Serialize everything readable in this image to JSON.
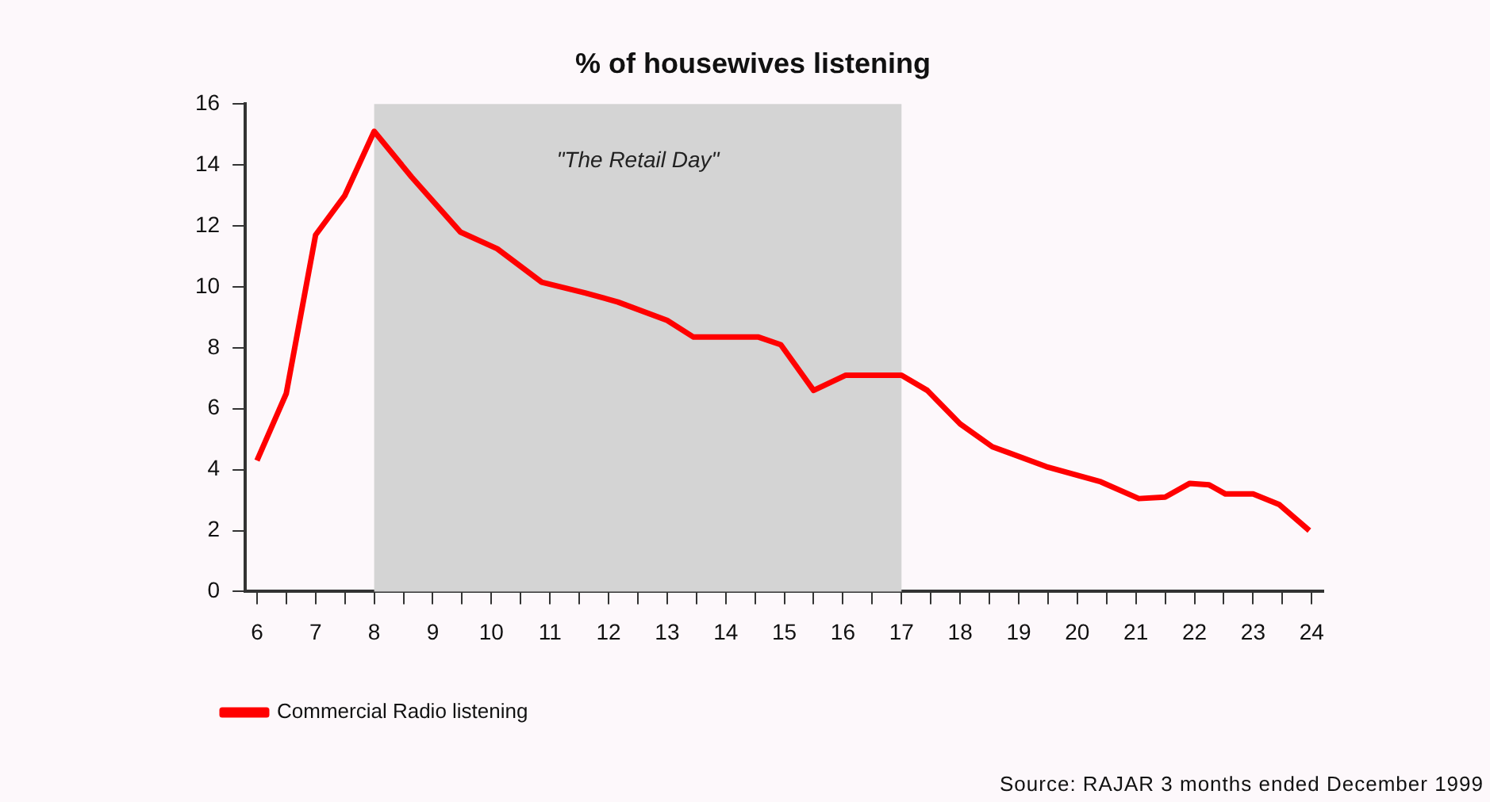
{
  "chart_data": {
    "type": "line",
    "title": "% of housewives listening",
    "series": [
      {
        "name": "Commercial Radio listening",
        "color": "#ff0000",
        "x": [
          6,
          6.5,
          7,
          7.5,
          8,
          8.64,
          9.47,
          10.1,
          10.86,
          11.6,
          12.16,
          13,
          13.45,
          14.56,
          14.94,
          15.5,
          16.05,
          17,
          17.44,
          18,
          18.55,
          19.47,
          20.4,
          21.05,
          21.5,
          21.92,
          22.25,
          22.53,
          23,
          23.45,
          23.96
        ],
        "values": [
          4.3,
          6.5,
          11.7,
          13,
          15.1,
          13.6,
          11.8,
          11.25,
          10.15,
          9.8,
          9.5,
          8.9,
          8.35,
          8.35,
          8.1,
          6.6,
          7.1,
          7.1,
          6.6,
          5.5,
          4.75,
          4.1,
          3.6,
          3.05,
          3.1,
          3.55,
          3.5,
          3.2,
          3.2,
          2.85,
          2
        ]
      }
    ],
    "xlim": [
      5.8,
      24.2
    ],
    "xticks": [
      6,
      {
        "value": 6.5,
        "label": null
      },
      7,
      {
        "value": 7.5,
        "label": null
      },
      8,
      {
        "value": 8.5,
        "label": null
      },
      9,
      {
        "value": 9.5,
        "label": null
      },
      10,
      {
        "value": 10.5,
        "label": null
      },
      11,
      {
        "value": 11.5,
        "label": null
      },
      12,
      {
        "value": 12.5,
        "label": null
      },
      13,
      {
        "value": 13.5,
        "label": null
      },
      14,
      {
        "value": 14.5,
        "label": null
      },
      15,
      {
        "value": 15.5,
        "label": null
      },
      16,
      {
        "value": 16.5,
        "label": null
      },
      17,
      {
        "value": 17.5,
        "label": null
      },
      18,
      {
        "value": 18.5,
        "label": null
      },
      19,
      {
        "value": 19.5,
        "label": null
      },
      20,
      {
        "value": 20.5,
        "label": null
      },
      21,
      {
        "value": 21.5,
        "label": null
      },
      22,
      {
        "value": 22.5,
        "label": null
      },
      23,
      {
        "value": 23.5,
        "label": null
      },
      24
    ],
    "ylim": [
      0,
      16
    ],
    "yticks": [
      0,
      2,
      4,
      6,
      8,
      10,
      12,
      14,
      16
    ],
    "bands": [
      {
        "axis": "x",
        "from": 8,
        "to": 17,
        "label": "\"The Retail Day\"",
        "color": "#d4d4d4"
      }
    ],
    "annotations": [
      "Source:  RAJAR 3 months ended December 1999"
    ],
    "grid": false,
    "legend": "bottom left",
    "marker": "none",
    "line_style": "solid"
  }
}
